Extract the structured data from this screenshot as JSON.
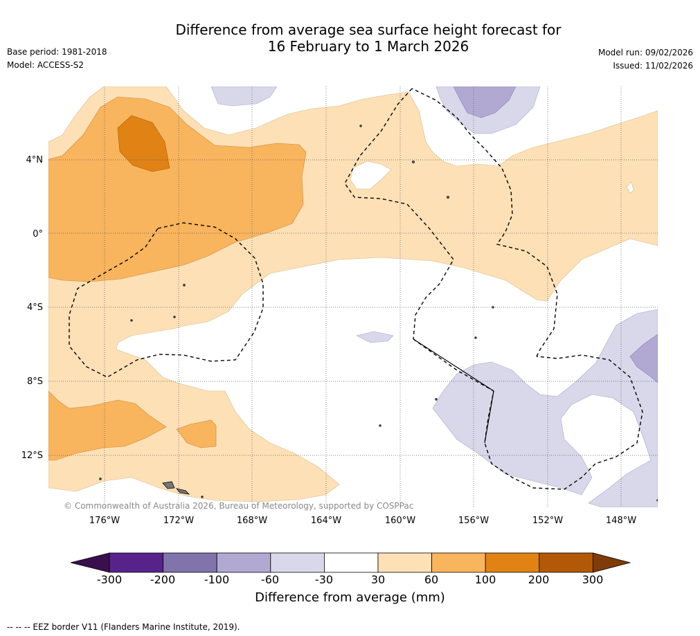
{
  "title": {
    "line1": "Difference from average sea surface height forecast for",
    "line2": "16 February to 1 March 2026"
  },
  "meta": {
    "base_period": "Base period: 1981-2018",
    "model": "Model: ACCESS-S2",
    "model_run": "Model run: 09/02/2026",
    "issued": "Issued: 11/02/2026"
  },
  "map": {
    "lat_labels": [
      "4°N",
      "0°",
      "4°S",
      "8°S",
      "12°S"
    ],
    "lon_labels": [
      "176°W",
      "172°W",
      "168°W",
      "164°W",
      "160°W",
      "156°W",
      "152°W",
      "148°W"
    ],
    "copyright": "© Commonwealth of Australia 2026, Bureau of Meteorology, supported by COSPPac"
  },
  "colorbar": {
    "label": "Difference from average (mm)",
    "ticks": [
      "-300",
      "-200",
      "-100",
      "-60",
      "-30",
      "30",
      "60",
      "100",
      "200",
      "300"
    ],
    "colors": [
      "#3b0f4e",
      "#57238a",
      "#8173ac",
      "#b1a9d2",
      "#d8d8ea",
      "#ffffff",
      "#fde0b6",
      "#f9b45e",
      "#e08214",
      "#b35806",
      "#7f3b08"
    ]
  },
  "eez_note": "--  --  -- EEZ border V11 (Flanders Marine Institute, 2019)."
}
